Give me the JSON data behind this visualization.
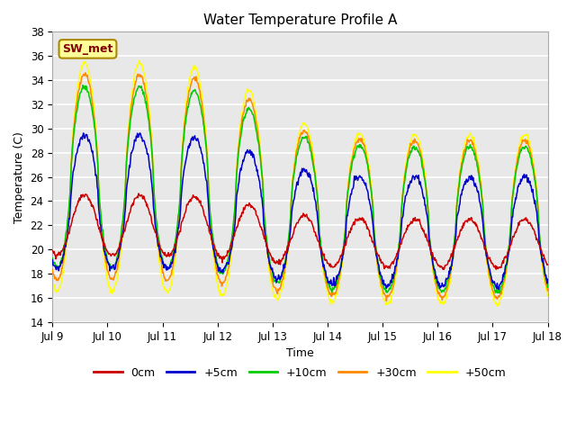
{
  "title": "Water Temperature Profile A",
  "xlabel": "Time",
  "ylabel": "Temperature (C)",
  "ylim": [
    14,
    38
  ],
  "yticks": [
    14,
    16,
    18,
    20,
    22,
    24,
    26,
    28,
    30,
    32,
    34,
    36,
    38
  ],
  "xtick_labels": [
    "Jul 9",
    "Jul 10",
    "Jul 11",
    "Jul 12",
    "Jul 13",
    "Jul 14",
    "Jul 15",
    "Jul 16",
    "Jul 17",
    "Jul 18"
  ],
  "bg_color": "#e0e0e0",
  "plot_bg_color": "#e8e8e8",
  "lines": [
    {
      "label": "0cm",
      "color": "#cc0000"
    },
    {
      "label": "+5cm",
      "color": "#0000cc"
    },
    {
      "label": "+10cm",
      "color": "#00cc00"
    },
    {
      "label": "+30cm",
      "color": "#ff8800"
    },
    {
      "label": "+50cm",
      "color": "#ffff00"
    }
  ],
  "annotation_text": "SW_met",
  "annotation_color": "#800000",
  "annotation_bg": "#ffff99",
  "annotation_border": "#888800"
}
